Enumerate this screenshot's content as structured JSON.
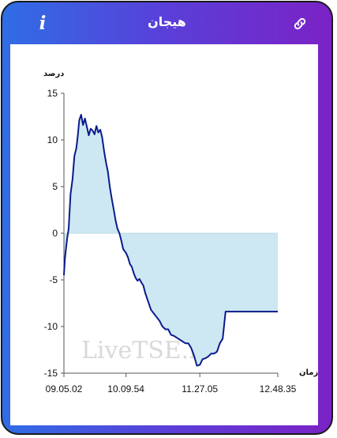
{
  "header": {
    "title": "هیجان",
    "info_icon": "info-icon",
    "link_icon": "link-icon"
  },
  "colors": {
    "gradient_start": "#2f6de6",
    "gradient_end": "#7b22c6",
    "line": "#0b1a8c",
    "fill": "#cde8f2"
  },
  "watermark": "LiveTSE.ir",
  "chart_data": {
    "type": "area",
    "ylabel": "درصد",
    "xlabel": "زمان",
    "ylim": [
      -15,
      15
    ],
    "y_ticks": [
      15,
      10,
      5,
      0,
      -5,
      -10,
      -15
    ],
    "x_range": [
      "09.05.02",
      "12.48.35"
    ],
    "x_ticks": [
      "09.05.02",
      "10.09.54",
      "11.27.05",
      "12.48.35"
    ],
    "grid": false,
    "baseline": 0,
    "series": [
      {
        "x": [
          "09.05.02",
          "09.06.00",
          "09.07.00",
          "09.08.30",
          "09.10.00",
          "09.12.00",
          "09.14.00",
          "09.16.00",
          "09.18.00",
          "09.19.30",
          "09.21.00",
          "09.23.00",
          "09.25.00",
          "09.27.00",
          "09.29.00",
          "09.31.00",
          "09.33.00",
          "09.35.00",
          "09.37.00",
          "09.39.00",
          "09.41.00",
          "09.43.00",
          "09.45.00",
          "09.47.00",
          "09.49.00",
          "09.51.00",
          "09.53.00",
          "09.55.00",
          "09.57.00",
          "09.59.00",
          "10.01.00",
          "10.03.00",
          "10.05.00",
          "10.07.00",
          "10.09.54",
          "10.12.00",
          "10.14.00",
          "10.16.00",
          "10.18.00",
          "10.20.00",
          "10.22.00",
          "10.24.00",
          "10.26.00",
          "10.28.00",
          "10.30.00",
          "10.33.00",
          "10.36.00",
          "10.39.00",
          "10.42.00",
          "10.45.00",
          "10.48.00",
          "10.51.00",
          "10.54.00",
          "10.57.00",
          "11.00.00",
          "11.03.00",
          "11.06.00",
          "11.09.00",
          "11.12.00",
          "11.15.00",
          "11.18.00",
          "11.21.00",
          "11.24.00",
          "11.27.05",
          "11.30.00",
          "11.33.00",
          "11.36.00",
          "11.39.00",
          "11.42.00",
          "11.45.00",
          "11.48.00",
          "11.51.00",
          "11.54.00",
          "11.57.00",
          "12.00.00",
          "12.03.00",
          "12.06.00",
          "12.09.00",
          "12.12.00",
          "12.15.00",
          "12.18.00",
          "12.21.00",
          "12.24.00",
          "12.26.00",
          "12.30.00",
          "12.35.00",
          "12.40.00",
          "12.48.35"
        ],
        "y": [
          -4.5,
          -2.8,
          -1.8,
          -0.5,
          0.5,
          4.2,
          5.8,
          8.3,
          9.1,
          10.4,
          12.1,
          12.7,
          11.6,
          12.3,
          11.4,
          10.5,
          11.2,
          11.0,
          10.6,
          11.5,
          10.8,
          11.1,
          10.3,
          8.8,
          7.6,
          6.6,
          5.0,
          3.7,
          2.6,
          1.4,
          0.5,
          0.0,
          -0.8,
          -1.7,
          -2.1,
          -2.6,
          -3.3,
          -3.6,
          -4.3,
          -4.8,
          -5.1,
          -4.9,
          -5.3,
          -5.6,
          -6.4,
          -7.3,
          -8.2,
          -8.6,
          -9.0,
          -9.4,
          -10.0,
          -10.3,
          -10.3,
          -10.9,
          -11.0,
          -11.2,
          -11.4,
          -11.6,
          -11.8,
          -11.8,
          -12.3,
          -13.1,
          -14.2,
          -14.1,
          -13.5,
          -13.4,
          -13.2,
          -12.9,
          -12.9,
          -12.7,
          -11.8,
          -11.3,
          -8.4,
          -8.4,
          -8.4,
          -8.4,
          -8.4,
          -8.4,
          -8.4,
          -8.4,
          -8.4,
          -8.4,
          -8.4,
          -8.4,
          -8.4,
          -8.4,
          -8.4,
          -8.4
        ]
      }
    ]
  }
}
